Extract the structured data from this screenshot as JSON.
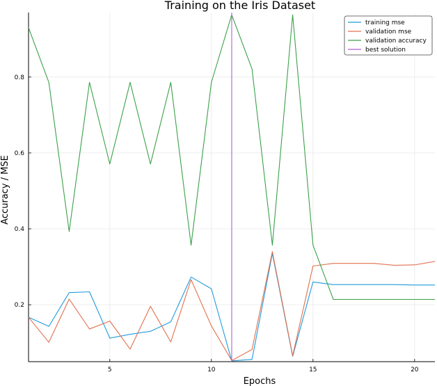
{
  "chart_data": {
    "type": "line",
    "title": "Training on the Iris Dataset",
    "xlabel": "Epochs",
    "ylabel": "Accuracy / MSE",
    "xlim": [
      1,
      21
    ],
    "ylim": [
      0.05,
      0.97
    ],
    "x_ticks": [
      5,
      10,
      15,
      20
    ],
    "y_ticks": [
      0.2,
      0.4,
      0.6,
      0.8
    ],
    "grid": true,
    "legend_position": "top-right",
    "x": [
      1,
      2,
      3,
      4,
      5,
      6,
      7,
      8,
      9,
      10,
      11,
      12,
      13,
      14,
      15,
      16,
      17,
      18,
      19,
      20,
      21
    ],
    "series": [
      {
        "name": "training mse",
        "color": "#1f9bdc",
        "values": [
          0.167,
          0.143,
          0.232,
          0.234,
          0.112,
          0.122,
          0.13,
          0.155,
          0.273,
          0.242,
          0.052,
          0.056,
          0.335,
          0.064,
          0.26,
          0.253,
          0.253,
          0.253,
          0.253,
          0.252,
          0.252
        ]
      },
      {
        "name": "validation mse",
        "color": "#e2704e",
        "values": [
          0.167,
          0.101,
          0.215,
          0.136,
          0.157,
          0.083,
          0.196,
          0.102,
          0.266,
          0.144,
          0.053,
          0.082,
          0.34,
          0.066,
          0.302,
          0.309,
          0.309,
          0.309,
          0.304,
          0.305,
          0.314
        ]
      },
      {
        "name": "validation accuracy",
        "color": "#3aa14a",
        "values": [
          0.93,
          0.786,
          0.393,
          0.786,
          0.571,
          0.786,
          0.571,
          0.786,
          0.357,
          0.786,
          0.964,
          0.821,
          0.357,
          0.964,
          0.357,
          0.214,
          0.214,
          0.214,
          0.214,
          0.214,
          0.214
        ]
      }
    ],
    "best_solution": {
      "name": "best solution",
      "color": "#b35fd1",
      "x": 11
    }
  }
}
